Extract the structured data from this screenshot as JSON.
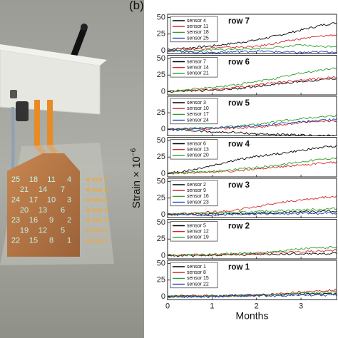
{
  "figure": {
    "panel_label": "(b)",
    "y_axis_label": "Strain × 10",
    "y_axis_exponent": "−6",
    "x_axis_label": "Months"
  },
  "photo": {
    "rows": [
      {
        "label": "row 7",
        "sensors": [
          "25",
          "18",
          "11",
          "4"
        ]
      },
      {
        "label": "row 6",
        "sensors": [
          "21",
          "14",
          "7"
        ]
      },
      {
        "label": "row 5",
        "sensors": [
          "24",
          "17",
          "10",
          "3"
        ]
      },
      {
        "label": "row 4",
        "sensors": [
          "20",
          "13",
          "6"
        ]
      },
      {
        "label": "row 3",
        "sensors": [
          "23",
          "16",
          "9",
          "2"
        ]
      },
      {
        "label": "row 2",
        "sensors": [
          "19",
          "12",
          "5"
        ]
      },
      {
        "label": "row 1",
        "sensors": [
          "22",
          "15",
          "8",
          "1"
        ]
      }
    ],
    "colors": {
      "sensor_text": "#bff5ea",
      "row_text": "#f7a52b",
      "box": "#e8e9e4",
      "pcb": "#c8874f",
      "cable": "#e88b25"
    }
  },
  "chart_data": [
    {
      "type": "line",
      "title": "row 7",
      "xlim": [
        0,
        3.8
      ],
      "ylim": [
        -5,
        55
      ],
      "yticks": [
        0,
        25,
        50
      ],
      "xticks": [
        0,
        1,
        2,
        3
      ],
      "series": [
        {
          "name": "sensor 4",
          "color": "#000000",
          "x": [
            0,
            0.5,
            1,
            1.5,
            2,
            2.5,
            3,
            3.5,
            3.8
          ],
          "values": [
            2,
            4,
            7,
            11,
            16,
            23,
            31,
            39,
            42
          ]
        },
        {
          "name": "sensor 11",
          "color": "#d62728",
          "x": [
            0,
            0.5,
            1,
            1.5,
            2,
            2.5,
            3,
            3.5,
            3.8
          ],
          "values": [
            0,
            2,
            4,
            5,
            6,
            12,
            18,
            22,
            24
          ]
        },
        {
          "name": "sensor 18",
          "color": "#2ca02c",
          "x": [
            0,
            0.5,
            1,
            1.5,
            2,
            2.5,
            3,
            3.5,
            3.8
          ],
          "values": [
            0,
            -1,
            1,
            2,
            3,
            5,
            8,
            6,
            7
          ]
        },
        {
          "name": "sensor 25",
          "color": "#1f3fb4",
          "x": [
            0,
            0.5,
            1,
            1.5,
            2,
            2.5,
            3,
            3.5,
            3.8
          ],
          "values": [
            0,
            -2,
            -3,
            -2,
            -1,
            -2,
            -3,
            -2,
            -2
          ]
        }
      ]
    },
    {
      "type": "line",
      "title": "row 6",
      "xlim": [
        0,
        3.8
      ],
      "ylim": [
        -5,
        55
      ],
      "yticks": [
        0,
        25,
        50
      ],
      "xticks": [
        0,
        1,
        2,
        3
      ],
      "series": [
        {
          "name": "sensor 7",
          "color": "#000000",
          "x": [
            0,
            0.5,
            1,
            1.5,
            2,
            2.5,
            3,
            3.5,
            3.8
          ],
          "values": [
            0,
            1,
            2,
            4,
            8,
            12,
            15,
            18,
            20
          ]
        },
        {
          "name": "sensor 14",
          "color": "#d62728",
          "x": [
            0,
            0.5,
            1,
            1.5,
            2,
            2.5,
            3,
            3.5,
            3.8
          ],
          "values": [
            0,
            2,
            3,
            6,
            10,
            14,
            18,
            20,
            22
          ]
        },
        {
          "name": "sensor 21",
          "color": "#2ca02c",
          "x": [
            0,
            0.5,
            1,
            1.5,
            2,
            2.5,
            3,
            3.5,
            3.8
          ],
          "values": [
            0,
            3,
            6,
            10,
            15,
            21,
            28,
            33,
            36
          ]
        }
      ]
    },
    {
      "type": "line",
      "title": "row 5",
      "xlim": [
        0,
        3.8
      ],
      "ylim": [
        -10,
        50
      ],
      "yticks": [
        0,
        25
      ],
      "xticks": [
        0,
        1,
        2,
        3
      ],
      "series": [
        {
          "name": "sensor 3",
          "color": "#000000",
          "x": [
            0,
            0.5,
            1,
            1.5,
            2,
            2.5,
            3,
            3.5,
            3.8
          ],
          "values": [
            0,
            -2,
            -4,
            -5,
            -7,
            -8,
            -9,
            -10,
            -10
          ]
        },
        {
          "name": "sensor 10",
          "color": "#d62728",
          "x": [
            0,
            0.5,
            1,
            1.5,
            2,
            2.5,
            3,
            3.5,
            3.8
          ],
          "values": [
            0,
            0,
            1,
            2,
            3,
            6,
            10,
            12,
            13
          ]
        },
        {
          "name": "sensor 17",
          "color": "#2ca02c",
          "x": [
            0,
            0.5,
            1,
            1.5,
            2,
            2.5,
            3,
            3.5,
            3.8
          ],
          "values": [
            0,
            1,
            2,
            4,
            7,
            12,
            16,
            19,
            21
          ]
        },
        {
          "name": "sensor 24",
          "color": "#1f3fb4",
          "x": [
            0,
            0.5,
            1,
            1.5,
            2,
            2.5,
            3,
            3.5,
            3.8
          ],
          "values": [
            0,
            1,
            2,
            3,
            5,
            8,
            11,
            14,
            15
          ]
        }
      ]
    },
    {
      "type": "line",
      "title": "row 4",
      "xlim": [
        0,
        3.8
      ],
      "ylim": [
        -5,
        55
      ],
      "yticks": [
        0,
        25,
        50
      ],
      "xticks": [
        0,
        1,
        2,
        3
      ],
      "series": [
        {
          "name": "sensor 6",
          "color": "#000000",
          "x": [
            0,
            0.5,
            1,
            1.5,
            2,
            2.5,
            3,
            3.5,
            3.8
          ],
          "values": [
            0,
            5,
            12,
            20,
            26,
            30,
            35,
            40,
            42
          ]
        },
        {
          "name": "sensor 13",
          "color": "#d62728",
          "x": [
            0,
            0.5,
            1,
            1.5,
            2,
            2.5,
            3,
            3.5,
            3.8
          ],
          "values": [
            0,
            1,
            2,
            4,
            7,
            10,
            13,
            16,
            17
          ]
        },
        {
          "name": "sensor 20",
          "color": "#2ca02c",
          "x": [
            0,
            0.5,
            1,
            1.5,
            2,
            2.5,
            3,
            3.5,
            3.8
          ],
          "values": [
            0,
            2,
            3,
            6,
            9,
            13,
            18,
            22,
            24
          ]
        }
      ]
    },
    {
      "type": "line",
      "title": "row 3",
      "xlim": [
        0,
        3.8
      ],
      "ylim": [
        -5,
        55
      ],
      "yticks": [
        0,
        25,
        50
      ],
      "xticks": [
        0,
        1,
        2,
        3
      ],
      "series": [
        {
          "name": "sensor 2",
          "color": "#000000",
          "x": [
            0,
            0.5,
            1,
            1.5,
            2,
            2.5,
            3,
            3.5,
            3.8
          ],
          "values": [
            0,
            1,
            1,
            2,
            2,
            3,
            4,
            5,
            5
          ]
        },
        {
          "name": "sensor 9",
          "color": "#d62728",
          "x": [
            0,
            0.5,
            1,
            1.5,
            2,
            2.5,
            3,
            3.5,
            3.8
          ],
          "values": [
            0,
            2,
            4,
            6,
            12,
            18,
            22,
            26,
            28
          ]
        },
        {
          "name": "sensor 16",
          "color": "#2ca02c",
          "x": [
            0,
            0.5,
            1,
            1.5,
            2,
            2.5,
            3,
            3.5,
            3.8
          ],
          "values": [
            0,
            1,
            2,
            3,
            4,
            6,
            7,
            8,
            9
          ]
        },
        {
          "name": "sensor 23",
          "color": "#1f3fb4",
          "x": [
            0,
            0.5,
            1,
            1.5,
            2,
            2.5,
            3,
            3.5,
            3.8
          ],
          "values": [
            0,
            0,
            -1,
            0,
            1,
            1,
            2,
            2,
            2
          ]
        }
      ]
    },
    {
      "type": "line",
      "title": "row 2",
      "xlim": [
        0,
        3.8
      ],
      "ylim": [
        -5,
        55
      ],
      "yticks": [
        0,
        25,
        50
      ],
      "xticks": [
        0,
        1,
        2,
        3
      ],
      "series": [
        {
          "name": "sensor 5",
          "color": "#000000",
          "x": [
            0,
            0.5,
            1,
            1.5,
            2,
            2.5,
            3,
            3.5,
            3.8
          ],
          "values": [
            0,
            0,
            1,
            1,
            2,
            2,
            3,
            3,
            3
          ]
        },
        {
          "name": "sensor 12",
          "color": "#d62728",
          "x": [
            0,
            0.5,
            1,
            1.5,
            2,
            2.5,
            3,
            3.5,
            3.8
          ],
          "values": [
            0,
            1,
            1,
            2,
            3,
            5,
            6,
            7,
            8
          ]
        },
        {
          "name": "sensor 19",
          "color": "#2ca02c",
          "x": [
            0,
            0.5,
            1,
            1.5,
            2,
            2.5,
            3,
            3.5,
            3.8
          ],
          "values": [
            0,
            1,
            2,
            3,
            4,
            7,
            10,
            12,
            13
          ]
        }
      ]
    },
    {
      "type": "line",
      "title": "row 1",
      "xlim": [
        0,
        3.8
      ],
      "ylim": [
        -5,
        55
      ],
      "yticks": [
        0,
        25,
        50
      ],
      "xticks": [
        0,
        1,
        2,
        3
      ],
      "xlabel": "Months",
      "series": [
        {
          "name": "sensor 1",
          "color": "#000000",
          "x": [
            0,
            0.5,
            1,
            1.5,
            2,
            2.5,
            3,
            3.5,
            3.8
          ],
          "values": [
            0,
            1,
            1,
            2,
            2,
            3,
            4,
            4,
            4
          ]
        },
        {
          "name": "sensor 8",
          "color": "#d62728",
          "x": [
            0,
            0.5,
            1,
            1.5,
            2,
            2.5,
            3,
            3.5,
            3.8
          ],
          "values": [
            0,
            0,
            1,
            1,
            2,
            4,
            7,
            9,
            10
          ]
        },
        {
          "name": "sensor 15",
          "color": "#2ca02c",
          "x": [
            0,
            0.5,
            1,
            1.5,
            2,
            2.5,
            3,
            3.5,
            3.8
          ],
          "values": [
            0,
            0,
            1,
            1,
            2,
            3,
            5,
            6,
            7
          ]
        },
        {
          "name": "sensor 22",
          "color": "#1f3fb4",
          "x": [
            0,
            0.5,
            1,
            1.5,
            2,
            2.5,
            3,
            3.5,
            3.8
          ],
          "values": [
            0,
            0,
            0,
            1,
            1,
            1,
            2,
            2,
            2
          ]
        }
      ]
    }
  ]
}
